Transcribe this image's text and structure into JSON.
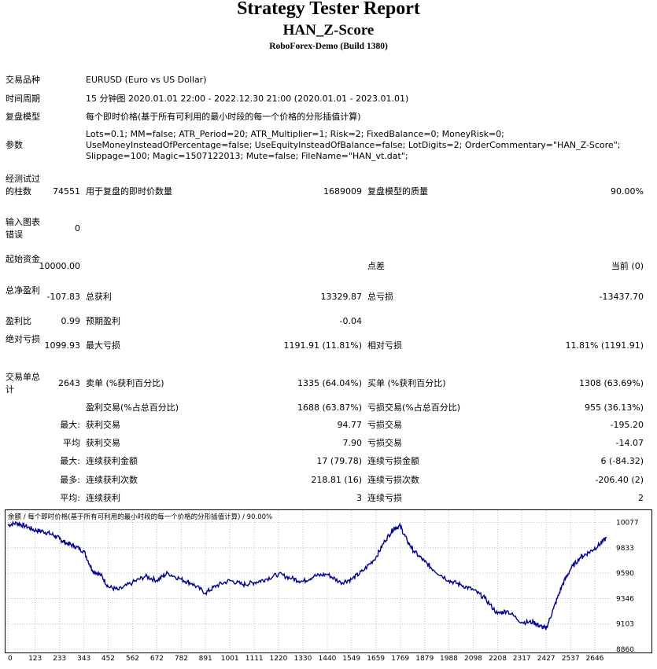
{
  "report": {
    "title": "Strategy Tester Report",
    "expert": "HAN_Z-Score",
    "server": "RoboForex-Demo (Build 1380)"
  },
  "info": {
    "symbol_label": "交易品种",
    "symbol": "EURUSD (Euro vs US Dollar)",
    "period_label": "时间周期",
    "period": "15 分钟图 2020.01.01 22:00 - 2022.12.30 21:00 (2020.01.01 - 2023.01.01)",
    "model_label": "复盘模型",
    "model": "每个即时价格(基于所有可利用的最小时段的每一个价格的分形插值计算)",
    "params_label": "参数",
    "params_line1": "Lots=0.1; MM=false; ATR_Period=20; ATR_Multiplier=1; Risk=2; FixedBalance=0; MoneyRisk=0;",
    "params_line2": "UseMoneyInsteadOfPercentage=false; UseEquityInsteadOfBalance=false; LotDigits=2; OrderCommentary=\"HAN_Z-Score\";",
    "params_line3": "Slippage=100; Magic=1507122013; Mute=false; FileName=\"HAN_vt.dat\";"
  },
  "stats": {
    "bars_label": "经测试过的柱数",
    "bars": "74551",
    "ticks_label": "用于复盘的即时价数量",
    "ticks": "1689009",
    "quality_label": "复盘模型的质量",
    "quality": "90.00%",
    "errors_label": "输入图表错误",
    "errors": "0",
    "deposit_label": "起始资金",
    "deposit": "10000.00",
    "spread_label": "点差",
    "spread": "当前 (0)",
    "net_label": "总净盈利",
    "net": "-107.83",
    "gross_profit_label": "总获利",
    "gross_profit": "13329.87",
    "gross_loss_label": "总亏损",
    "gross_loss": "-13437.70",
    "pf_label": "盈利比",
    "pf": "0.99",
    "expected_label": "预期盈利",
    "expected": "-0.04",
    "abs_dd_label": "绝对亏损",
    "abs_dd": "1099.93",
    "max_dd_label": "最大亏损",
    "max_dd": "1191.91 (11.81%)",
    "rel_dd_label": "相对亏损",
    "rel_dd": "11.81% (1191.91)",
    "trades_label": "交易单总计",
    "trades": "2643",
    "short_label": "卖单 (%获利百分比)",
    "short": "1335 (64.04%)",
    "long_label": "买单 (%获利百分比)",
    "long": "1308 (63.69%)",
    "profit_trades_label": "盈利交易(%占总百分比)",
    "profit_trades": "1688 (63.87%)",
    "loss_trades_label": "亏损交易(%占总百分比)",
    "loss_trades": "955 (36.13%)",
    "largest_prefix": "最大:",
    "largest_profit_label": "获利交易",
    "largest_profit": "94.77",
    "largest_loss_label": "亏损交易",
    "largest_loss": "-195.20",
    "average_prefix": "平均",
    "average_profit_label": "获利交易",
    "average_profit": "7.90",
    "average_loss_label": "亏损交易",
    "average_loss": "-14.07",
    "max_prefix": "最大:",
    "max_consec_wins_label": "连续获利金额",
    "max_consec_wins": "17 (79.78)",
    "max_consec_losses_label": "连续亏损金额",
    "max_consec_losses": "6 (-84.32)",
    "most_prefix": "最多:",
    "most_consec_profit_label": "连续获利次数",
    "most_consec_profit": "218.81 (16)",
    "most_consec_loss_label": "连续亏损次数",
    "most_consec_loss": "-206.40 (2)",
    "avg_prefix": "平均:",
    "avg_consec_wins_label": "连续获利",
    "avg_consec_wins": "3",
    "avg_consec_losses_label": "连续亏损",
    "avg_consec_losses": "2"
  },
  "chart_data": {
    "type": "line",
    "title": "余额 / 每个即时价格(基于所有可利用的最小时段的每一个价格的分形插值计算) / 90.00%",
    "xlabel": "",
    "ylabel": "",
    "x_ticks": [
      "0",
      "123",
      "233",
      "343",
      "452",
      "562",
      "672",
      "782",
      "891",
      "1001",
      "1111",
      "1220",
      "1330",
      "1440",
      "1549",
      "1659",
      "1769",
      "1879",
      "1988",
      "2098",
      "2208",
      "2317",
      "2427",
      "2537",
      "2646"
    ],
    "y_ticks": [
      "10077",
      "9833",
      "9590",
      "9346",
      "9103",
      "8860"
    ],
    "xlim": [
      0,
      2710
    ],
    "ylim": [
      8860,
      10140
    ],
    "line_color": "#00008b",
    "series": [
      {
        "x": [
          0,
          40,
          80,
          123,
          160,
          200,
          233,
          260,
          300,
          343,
          380,
          420,
          452,
          500,
          562,
          620,
          672,
          720,
          782,
          830,
          891,
          940,
          1001,
          1060,
          1111,
          1160,
          1220,
          1280,
          1330,
          1380,
          1440,
          1500,
          1549,
          1600,
          1659,
          1700,
          1740,
          1769,
          1800,
          1830,
          1879,
          1920,
          1988,
          2040,
          2098,
          2150,
          2208,
          2250,
          2317,
          2370,
          2400,
          2427,
          2460,
          2500,
          2537,
          2580,
          2620,
          2660,
          2700
        ],
        "y": [
          10050,
          10070,
          10040,
          10000,
          9990,
          9960,
          9920,
          9880,
          9850,
          9800,
          9620,
          9570,
          9460,
          9430,
          9500,
          9560,
          9520,
          9590,
          9530,
          9490,
          9400,
          9470,
          9520,
          9480,
          9500,
          9530,
          9580,
          9540,
          9510,
          9560,
          9580,
          9500,
          9530,
          9610,
          9740,
          9900,
          10020,
          10040,
          9900,
          9800,
          9700,
          9620,
          9520,
          9480,
          9430,
          9350,
          9200,
          9230,
          9120,
          9120,
          9080,
          9060,
          9250,
          9480,
          9630,
          9740,
          9790,
          9850,
          9930
        ]
      }
    ]
  }
}
